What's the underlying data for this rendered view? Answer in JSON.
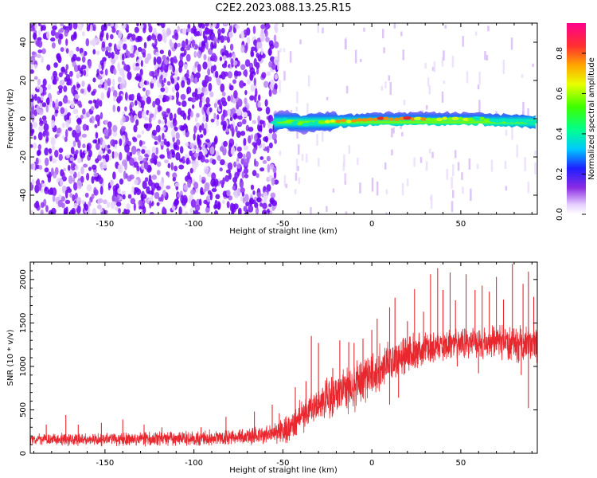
{
  "title": "C2E2.2023.088.13.25.R15",
  "colors": {
    "snr_line": "#e8282e",
    "axis": "#000000"
  },
  "chart_data": [
    {
      "type": "heatmap",
      "name": "spectrogram",
      "title": "C2E2.2023.088.13.25.R15",
      "xlabel": "Height of straight line (km)",
      "ylabel": "Frequency (Hz)",
      "xlim": [
        -192,
        93
      ],
      "ylim": [
        -50,
        50
      ],
      "xticks": [
        -150,
        -100,
        -50,
        0,
        50
      ],
      "yticks": [
        -40,
        -20,
        0,
        20,
        40
      ],
      "noise_region_x": [
        -192,
        -55
      ],
      "signal_band": {
        "x_start": -55,
        "x_end": 93,
        "center_frequency": [
          [
            -55,
            -2
          ],
          [
            -50,
            0
          ],
          [
            -40,
            -3
          ],
          [
            -30,
            -2
          ],
          [
            -20,
            -1
          ],
          [
            -10,
            -1
          ],
          [
            0,
            0
          ],
          [
            10,
            0
          ],
          [
            20,
            0
          ],
          [
            30,
            0
          ],
          [
            40,
            0
          ],
          [
            50,
            0
          ],
          [
            60,
            0
          ],
          [
            70,
            -1
          ],
          [
            80,
            -1
          ],
          [
            93,
            -2
          ]
        ],
        "amplitude_peak": [
          [
            -55,
            0.55
          ],
          [
            -50,
            0.6
          ],
          [
            -40,
            0.6
          ],
          [
            -30,
            0.65
          ],
          [
            -20,
            0.8
          ],
          [
            -10,
            0.85
          ],
          [
            0,
            0.95
          ],
          [
            10,
            0.9
          ],
          [
            20,
            0.95
          ],
          [
            30,
            0.8
          ],
          [
            40,
            0.75
          ],
          [
            50,
            0.7
          ],
          [
            60,
            0.65
          ],
          [
            70,
            0.6
          ],
          [
            80,
            0.6
          ],
          [
            93,
            0.5
          ]
        ]
      },
      "colorbar": {
        "label": "Normalized spectral amplitude",
        "range": [
          0,
          0.95
        ],
        "ticks": [
          "0.0",
          "0.2",
          "0.4",
          "0.6",
          "0.8"
        ],
        "tick_values": [
          0,
          0.2,
          0.4,
          0.6,
          0.8
        ]
      }
    },
    {
      "type": "line",
      "name": "snr",
      "xlabel": "Height of straight line (km)",
      "ylabel": "SNR (10 * v/v)",
      "xlim": [
        -192,
        93
      ],
      "ylim": [
        0,
        2200
      ],
      "xticks": [
        -150,
        -100,
        -50,
        0,
        50
      ],
      "yticks": [
        0,
        500,
        1000,
        1500,
        2000
      ],
      "baseline": [
        [
          -192,
          160
        ],
        [
          -150,
          160
        ],
        [
          -100,
          170
        ],
        [
          -75,
          190
        ],
        [
          -60,
          210
        ],
        [
          -50,
          250
        ],
        [
          -45,
          320
        ],
        [
          -40,
          420
        ],
        [
          -35,
          500
        ],
        [
          -30,
          560
        ],
        [
          -25,
          620
        ],
        [
          -20,
          690
        ],
        [
          -10,
          750
        ],
        [
          -5,
          840
        ],
        [
          0,
          900
        ],
        [
          5,
          980
        ],
        [
          10,
          1060
        ],
        [
          15,
          1100
        ],
        [
          20,
          1140
        ],
        [
          30,
          1200
        ],
        [
          40,
          1240
        ],
        [
          50,
          1260
        ],
        [
          60,
          1270
        ],
        [
          70,
          1280
        ],
        [
          80,
          1260
        ],
        [
          93,
          1250
        ]
      ],
      "noise_amplitude": [
        [
          -192,
          70
        ],
        [
          -60,
          110
        ],
        [
          -50,
          180
        ],
        [
          -20,
          300
        ],
        [
          0,
          320
        ],
        [
          20,
          240
        ],
        [
          50,
          200
        ],
        [
          93,
          240
        ]
      ],
      "spikes": [
        {
          "x": -183,
          "y": 330
        },
        {
          "x": -172,
          "y": 440
        },
        {
          "x": -165,
          "y": 330
        },
        {
          "x": -152,
          "y": 350
        },
        {
          "x": -140,
          "y": 390
        },
        {
          "x": -128,
          "y": 330
        },
        {
          "x": -118,
          "y": 300
        },
        {
          "x": -96,
          "y": 300
        },
        {
          "x": -82,
          "y": 420
        },
        {
          "x": -66,
          "y": 480
        },
        {
          "x": -56,
          "y": 560
        },
        {
          "x": -52,
          "y": 460
        },
        {
          "x": -43,
          "y": 760
        },
        {
          "x": -37,
          "y": 830
        },
        {
          "x": -34,
          "y": 1350
        },
        {
          "x": -30,
          "y": 1270
        },
        {
          "x": -26,
          "y": 840
        },
        {
          "x": -22,
          "y": 980
        },
        {
          "x": -18,
          "y": 1300
        },
        {
          "x": -13,
          "y": 1280
        },
        {
          "x": -10,
          "y": 1270
        },
        {
          "x": -5,
          "y": 1320
        },
        {
          "x": 0,
          "y": 1420
        },
        {
          "x": 3,
          "y": 1550
        },
        {
          "x": 10,
          "y": 1680
        },
        {
          "x": 13,
          "y": 1790
        },
        {
          "x": 20,
          "y": 1520
        },
        {
          "x": 24,
          "y": 1890
        },
        {
          "x": 29,
          "y": 1630
        },
        {
          "x": 33,
          "y": 2060
        },
        {
          "x": 37,
          "y": 2130
        },
        {
          "x": 40,
          "y": 1880
        },
        {
          "x": 44,
          "y": 2080
        },
        {
          "x": 47,
          "y": 1760
        },
        {
          "x": 53,
          "y": 2060
        },
        {
          "x": 58,
          "y": 1880
        },
        {
          "x": 62,
          "y": 1930
        },
        {
          "x": 66,
          "y": 1860
        },
        {
          "x": 70,
          "y": 2030
        },
        {
          "x": 74,
          "y": 1770
        },
        {
          "x": 79,
          "y": 2180
        },
        {
          "x": 85,
          "y": 1950
        },
        {
          "x": 88,
          "y": 2090
        },
        {
          "x": 91,
          "y": 1800
        }
      ],
      "dips": [
        {
          "x": 10,
          "y": 560
        },
        {
          "x": 15,
          "y": 640
        },
        {
          "x": 48,
          "y": 1000
        },
        {
          "x": 60,
          "y": 920
        },
        {
          "x": 84,
          "y": 900
        },
        {
          "x": 88,
          "y": 520
        }
      ]
    }
  ]
}
